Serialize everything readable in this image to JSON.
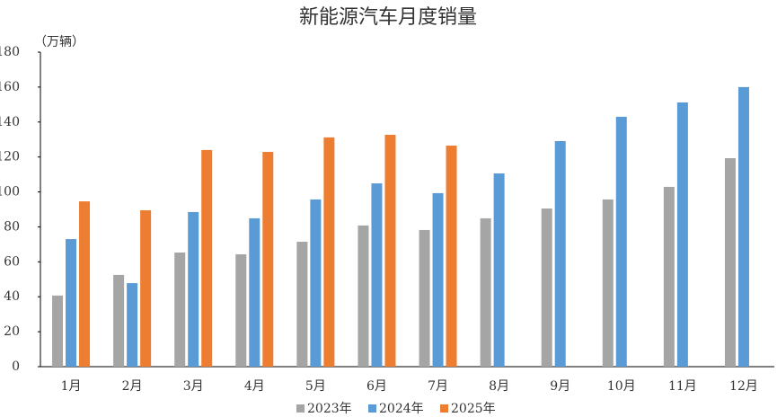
{
  "chart_data": {
    "type": "bar",
    "title": "新能源汽车月度销量",
    "y_unit_label": "（万辆）",
    "categories": [
      "1月",
      "2月",
      "3月",
      "4月",
      "5月",
      "6月",
      "7月",
      "8月",
      "9月",
      "10月",
      "11月",
      "12月"
    ],
    "series": [
      {
        "name": "2023年",
        "color": "#a5a5a5",
        "values": [
          40.7,
          52.5,
          65.3,
          64.3,
          71.5,
          80.8,
          78.2,
          84.9,
          90.5,
          95.7,
          102.9,
          119.3
        ]
      },
      {
        "name": "2024年",
        "color": "#5b9bd5",
        "values": [
          73.0,
          47.8,
          88.5,
          84.9,
          95.7,
          104.9,
          99.3,
          110.6,
          129.1,
          143.0,
          151.2,
          160.0
        ]
      },
      {
        "name": "2025年",
        "color": "#ed7d31",
        "values": [
          94.6,
          89.5,
          124.0,
          122.9,
          131.2,
          132.7,
          126.5,
          null,
          null,
          null,
          null,
          null
        ]
      }
    ],
    "ylim": [
      0,
      180
    ],
    "yticks": [
      0,
      20,
      40,
      60,
      80,
      100,
      120,
      140,
      160,
      180
    ],
    "grid": false,
    "legend": "bottom"
  }
}
